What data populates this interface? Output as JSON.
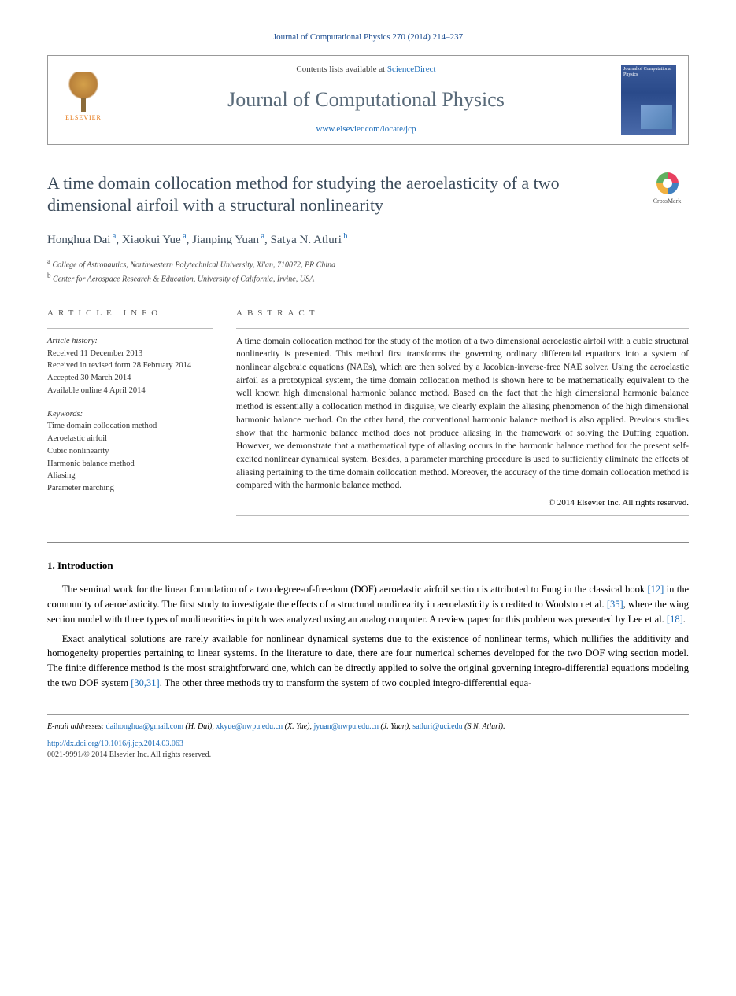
{
  "journal_ref": "Journal of Computational Physics 270 (2014) 214–237",
  "header": {
    "contents_prefix": "Contents lists available at ",
    "contents_link": "ScienceDirect",
    "journal_name": "Journal of Computational Physics",
    "journal_url": "www.elsevier.com/locate/jcp",
    "elsevier_label": "ELSEVIER",
    "cover_text": "Journal of Computational Physics"
  },
  "crossmark_label": "CrossMark",
  "title": "A time domain collocation method for studying the aeroelasticity of a two dimensional airfoil with a structural nonlinearity",
  "authors_html": "Honghua Dai<sup> a</sup>, Xiaokui Yue<sup> a</sup>, Jianping Yuan<sup> a</sup>, Satya N. Atluri<sup> b</sup>",
  "affiliations": {
    "a": "College of Astronautics, Northwestern Polytechnical University, Xi'an, 710072, PR China",
    "b": "Center for Aerospace Research & Education, University of California, Irvine, USA"
  },
  "info": {
    "label": "ARTICLE INFO",
    "history_head": "Article history:",
    "history": [
      "Received 11 December 2013",
      "Received in revised form 28 February 2014",
      "Accepted 30 March 2014",
      "Available online 4 April 2014"
    ],
    "keywords_head": "Keywords:",
    "keywords": [
      "Time domain collocation method",
      "Aeroelastic airfoil",
      "Cubic nonlinearity",
      "Harmonic balance method",
      "Aliasing",
      "Parameter marching"
    ]
  },
  "abstract": {
    "label": "ABSTRACT",
    "text": "A time domain collocation method for the study of the motion of a two dimensional aeroelastic airfoil with a cubic structural nonlinearity is presented. This method first transforms the governing ordinary differential equations into a system of nonlinear algebraic equations (NAEs), which are then solved by a Jacobian-inverse-free NAE solver. Using the aeroelastic airfoil as a prototypical system, the time domain collocation method is shown here to be mathematically equivalent to the well known high dimensional harmonic balance method. Based on the fact that the high dimensional harmonic balance method is essentially a collocation method in disguise, we clearly explain the aliasing phenomenon of the high dimensional harmonic balance method. On the other hand, the conventional harmonic balance method is also applied. Previous studies show that the harmonic balance method does not produce aliasing in the framework of solving the Duffing equation. However, we demonstrate that a mathematical type of aliasing occurs in the harmonic balance method for the present self-excited nonlinear dynamical system. Besides, a parameter marching procedure is used to sufficiently eliminate the effects of aliasing pertaining to the time domain collocation method. Moreover, the accuracy of the time domain collocation method is compared with the harmonic balance method.",
    "copyright": "© 2014 Elsevier Inc. All rights reserved."
  },
  "body": {
    "section_title": "1. Introduction",
    "para1_parts": [
      "The seminal work for the linear formulation of a two degree-of-freedom (DOF) aeroelastic airfoil section is attributed to Fung in the classical book ",
      "[12]",
      " in the community of aeroelasticity. The first study to investigate the effects of a structural nonlinearity in aeroelasticity is credited to Woolston et al. ",
      "[35]",
      ", where the wing section model with three types of nonlinearities in pitch was analyzed using an analog computer. A review paper for this problem was presented by Lee et al. ",
      "[18]",
      "."
    ],
    "para2_parts": [
      "Exact analytical solutions are rarely available for nonlinear dynamical systems due to the existence of nonlinear terms, which nullifies the additivity and homogeneity properties pertaining to linear systems. In the literature to date, there are four numerical schemes developed for the two DOF wing section model. The finite difference method is the most straightforward one, which can be directly applied to solve the original governing integro-differential equations modeling the two DOF system ",
      "[30,31]",
      ". The other three methods try to transform the system of two coupled integro-differential equa-"
    ]
  },
  "footer": {
    "emails_label": "E-mail addresses:",
    "emails": [
      {
        "addr": "daihonghua@gmail.com",
        "who": "(H. Dai)"
      },
      {
        "addr": "xkyue@nwpu.edu.cn",
        "who": "(X. Yue)"
      },
      {
        "addr": "jyuan@nwpu.edu.cn",
        "who": "(J. Yuan)"
      },
      {
        "addr": "satluri@uci.edu",
        "who": "(S.N. Atluri)"
      }
    ],
    "doi": "http://dx.doi.org/10.1016/j.jcp.2014.03.063",
    "copy": "0021-9991/© 2014 Elsevier Inc. All rights reserved."
  },
  "colors": {
    "link": "#1a6bb8",
    "title_gray": "#3a4a5a",
    "elsevier_orange": "#e67817"
  }
}
